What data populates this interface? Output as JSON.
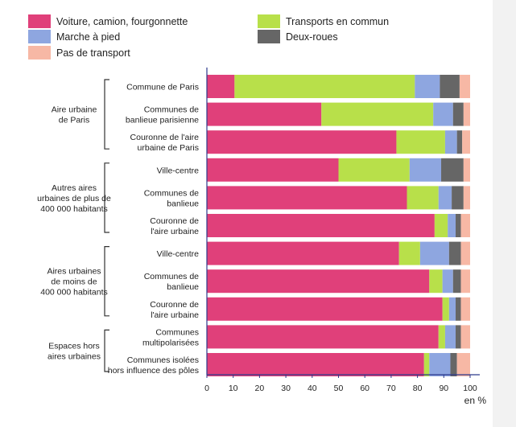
{
  "chart_data": {
    "type": "bar",
    "orientation": "horizontal",
    "stacked": true,
    "unit": "en %",
    "xlim": [
      0,
      100
    ],
    "xticks": [
      0,
      10,
      20,
      30,
      40,
      50,
      60,
      70,
      80,
      90,
      100
    ],
    "grid": false,
    "legend_position": "top",
    "series": [
      {
        "name": "Voiture, camion, fourgonnette",
        "color": "#e0407a"
      },
      {
        "name": "Transports en commun",
        "color": "#b8e04a"
      },
      {
        "name": "Marche à pied",
        "color": "#8ea6e0"
      },
      {
        "name": "Deux-roues",
        "color": "#666666"
      },
      {
        "name": "Pas de transport",
        "color": "#f7b8a5"
      }
    ],
    "groups": [
      {
        "label": [
          "Aire urbaine",
          "de Paris"
        ],
        "rows": [
          {
            "label": [
              "Commune de Paris"
            ],
            "values": [
              10.5,
              68.5,
              9.5,
              7.5,
              4.0
            ]
          },
          {
            "label": [
              "Communes de",
              "banlieue parisienne"
            ],
            "values": [
              43.5,
              42.5,
              7.5,
              4.0,
              2.5
            ]
          },
          {
            "label": [
              "Couronne de l'aire",
              "urbaine de Paris"
            ],
            "values": [
              72.0,
              18.5,
              4.5,
              2.0,
              3.0
            ]
          }
        ]
      },
      {
        "label": [
          "Autres aires",
          "urbaines de plus de",
          "400 000 habitants"
        ],
        "rows": [
          {
            "label": [
              "Ville-centre"
            ],
            "values": [
              50.0,
              27.0,
              12.0,
              8.5,
              2.5
            ]
          },
          {
            "label": [
              "Communes de",
              "banlieue"
            ],
            "values": [
              76.0,
              12.0,
              5.0,
              4.5,
              2.5
            ]
          },
          {
            "label": [
              "Couronne de",
              "l'aire urbaine"
            ],
            "values": [
              86.5,
              5.0,
              3.0,
              2.0,
              3.5
            ]
          }
        ]
      },
      {
        "label": [
          "Aires urbaines",
          "de moins de",
          "400 000 habitants"
        ],
        "rows": [
          {
            "label": [
              "Ville-centre"
            ],
            "values": [
              73.0,
              8.0,
              11.0,
              4.5,
              3.5
            ]
          },
          {
            "label": [
              "Communes de",
              "banlieue"
            ],
            "values": [
              84.5,
              5.0,
              4.0,
              3.0,
              3.5
            ]
          },
          {
            "label": [
              "Couronne de",
              "l'aire urbaine"
            ],
            "values": [
              89.5,
              2.5,
              2.5,
              2.0,
              3.5
            ]
          }
        ]
      },
      {
        "label": [
          "Espaces hors",
          "aires urbaines"
        ],
        "rows": [
          {
            "label": [
              "Communes",
              "multipolarisées"
            ],
            "values": [
              88.0,
              2.5,
              4.0,
              2.0,
              3.5
            ]
          },
          {
            "label": [
              "Communes isolées",
              "hors influence des pôles"
            ],
            "values": [
              82.5,
              2.0,
              8.0,
              2.5,
              5.0
            ]
          }
        ]
      }
    ]
  }
}
